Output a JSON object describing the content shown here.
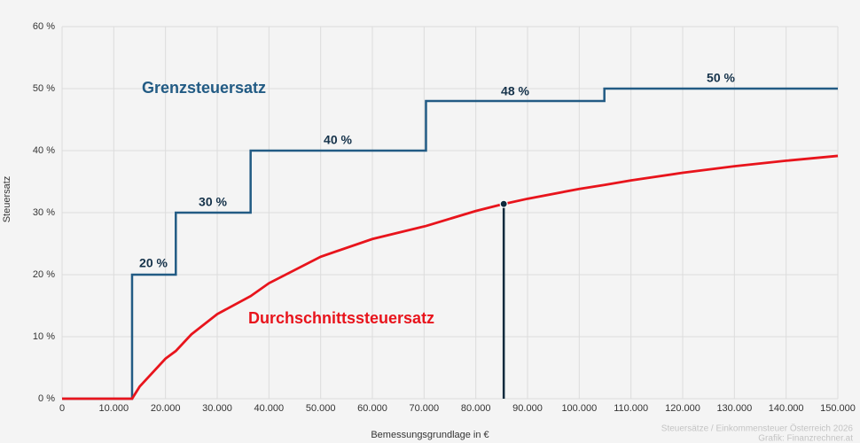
{
  "chart_data": {
    "type": "line",
    "x_label": "Bemessungsgrundlage in €",
    "y_label": "Steuersatz",
    "series": [
      {
        "name": "Grenzsteuersatz",
        "color": "#225b84",
        "x": [
          0,
          13539,
          13539,
          21992,
          21992,
          36458,
          36458,
          70365,
          70365,
          104859,
          104859,
          150000
        ],
        "values": [
          0,
          0,
          20,
          20,
          30,
          30,
          40,
          40,
          48,
          48,
          50,
          50
        ]
      },
      {
        "name": "Durchschnittssteuersatz",
        "color": "#e8141c",
        "x": [
          0,
          13539,
          15000,
          20000,
          21992,
          25000,
          30000,
          36458,
          40000,
          50000,
          60000,
          70365,
          80000,
          85000,
          90000,
          100000,
          104859,
          110000,
          120000,
          130000,
          140000,
          150000
        ],
        "values": [
          0,
          0,
          1.95,
          6.46,
          7.69,
          10.37,
          13.64,
          16.54,
          18.62,
          22.89,
          25.75,
          27.85,
          30.27,
          31.32,
          32.24,
          33.82,
          34.47,
          35.2,
          36.43,
          37.48,
          38.37,
          39.15
        ]
      }
    ],
    "annotations": [
      "20 %",
      "30 %",
      "40 %",
      "48 %",
      "50 %"
    ],
    "marker": {
      "x": 85400,
      "y": 31.4,
      "color": "#0d2a3d"
    },
    "footer": [
      "Steuersätze / Einkommensteuer Österreich 2026",
      "Grafik: Finanzrechner.at"
    ],
    "xlim": [
      0,
      150000
    ],
    "ylim": [
      0,
      60
    ],
    "xticks": [
      0,
      {
        "value": 10000,
        "label": "10.000"
      },
      {
        "value": 20000,
        "label": "20.000"
      },
      {
        "value": 30000,
        "label": "30.000"
      },
      {
        "value": 40000,
        "label": "40.000"
      },
      {
        "value": 50000,
        "label": "50.000"
      },
      {
        "value": 60000,
        "label": "60.000"
      },
      {
        "value": 70000,
        "label": "70.000"
      },
      {
        "value": 80000,
        "label": "80.000"
      },
      {
        "value": 90000,
        "label": "90.000"
      },
      {
        "value": 100000,
        "label": "100.000"
      },
      {
        "value": 110000,
        "label": "110.000"
      },
      {
        "value": 120000,
        "label": "120.000"
      },
      {
        "value": 130000,
        "label": "130.000"
      },
      {
        "value": 140000,
        "label": "140.000"
      },
      {
        "value": 150000,
        "label": "150.000"
      }
    ],
    "yticks": [
      {
        "value": 0,
        "label": "0 %"
      },
      {
        "value": 10,
        "label": "10 %"
      },
      {
        "value": 20,
        "label": "20 %"
      },
      {
        "value": 30,
        "label": "30 %"
      },
      {
        "value": 40,
        "label": "40 %"
      },
      {
        "value": 50,
        "label": "50 %"
      },
      {
        "value": 60,
        "label": "60 %"
      }
    ],
    "grid": true
  }
}
